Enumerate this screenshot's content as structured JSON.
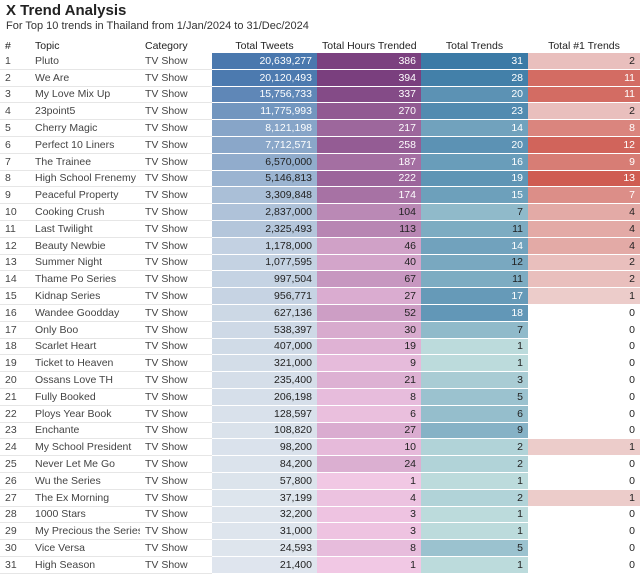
{
  "header": {
    "title": "X Trend Analysis",
    "subtitle": "For Top 10 trends in Thailand from 1/Jan/2024 to 31/Dec/2024"
  },
  "colors": {
    "tweets_low": "#e2e8ef",
    "tweets_high": "#4a78ae",
    "hours_low": "#f6cde8",
    "hours_high": "#7a3f7e",
    "trends_low": "#d3ece6",
    "trends_high": "#3b7aa6",
    "top1_zero": "#ffffff",
    "top1_low": "#f0dcdc",
    "top1_high": "#cf5c52",
    "dark_text_threshold_white": "#ffffff",
    "dark_text": "#222222"
  },
  "chart_data": {
    "type": "table",
    "columns": [
      "#",
      "Topic",
      "Category",
      "Total Tweets",
      "Total Hours Trended",
      "Total Trends",
      "Total #1 Trends"
    ],
    "rows": [
      {
        "rank": "1",
        "topic": "Pluto",
        "category": "TV Show",
        "tweets": 20639277,
        "hours": 386,
        "trends": 31,
        "top1": 2
      },
      {
        "rank": "2",
        "topic": "We Are",
        "category": "TV Show",
        "tweets": 20120493,
        "hours": 394,
        "trends": 28,
        "top1": 11
      },
      {
        "rank": "3",
        "topic": "My Love Mix Up",
        "category": "TV Show",
        "tweets": 15756733,
        "hours": 337,
        "trends": 20,
        "top1": 11
      },
      {
        "rank": "4",
        "topic": "23point5",
        "category": "TV Show",
        "tweets": 11775993,
        "hours": 270,
        "trends": 23,
        "top1": 2
      },
      {
        "rank": "5",
        "topic": "Cherry Magic",
        "category": "TV Show",
        "tweets": 8121198,
        "hours": 217,
        "trends": 14,
        "top1": 8
      },
      {
        "rank": "6",
        "topic": "Perfect 10 Liners",
        "category": "TV Show",
        "tweets": 7712571,
        "hours": 258,
        "trends": 20,
        "top1": 12
      },
      {
        "rank": "7",
        "topic": "The Trainee",
        "category": "TV Show",
        "tweets": 6570000,
        "hours": 187,
        "trends": 16,
        "top1": 9
      },
      {
        "rank": "8",
        "topic": "High School Frenemy",
        "category": "TV Show",
        "tweets": 5146813,
        "hours": 222,
        "trends": 19,
        "top1": 13
      },
      {
        "rank": "9",
        "topic": "Peaceful Property",
        "category": "TV Show",
        "tweets": 3309848,
        "hours": 174,
        "trends": 15,
        "top1": 7
      },
      {
        "rank": "10",
        "topic": "Cooking Crush",
        "category": "TV Show",
        "tweets": 2837000,
        "hours": 104,
        "trends": 7,
        "top1": 4
      },
      {
        "rank": "11",
        "topic": "Last Twilight",
        "category": "TV Show",
        "tweets": 2325493,
        "hours": 113,
        "trends": 11,
        "top1": 4
      },
      {
        "rank": "12",
        "topic": "Beauty Newbie",
        "category": "TV Show",
        "tweets": 1178000,
        "hours": 46,
        "trends": 14,
        "top1": 4
      },
      {
        "rank": "13",
        "topic": "Summer Night",
        "category": "TV Show",
        "tweets": 1077595,
        "hours": 40,
        "trends": 12,
        "top1": 2
      },
      {
        "rank": "14",
        "topic": "Thame Po Series",
        "category": "TV Show",
        "tweets": 997504,
        "hours": 67,
        "trends": 11,
        "top1": 2
      },
      {
        "rank": "15",
        "topic": "Kidnap Series",
        "category": "TV Show",
        "tweets": 956771,
        "hours": 27,
        "trends": 17,
        "top1": 1
      },
      {
        "rank": "16",
        "topic": "Wandee Goodday",
        "category": "TV Show",
        "tweets": 627136,
        "hours": 52,
        "trends": 18,
        "top1": 0
      },
      {
        "rank": "17",
        "topic": "Only Boo",
        "category": "TV Show",
        "tweets": 538397,
        "hours": 30,
        "trends": 7,
        "top1": 0
      },
      {
        "rank": "18",
        "topic": "Scarlet Heart",
        "category": "TV Show",
        "tweets": 407000,
        "hours": 19,
        "trends": 1,
        "top1": 0
      },
      {
        "rank": "19",
        "topic": "Ticket to Heaven",
        "category": "TV Show",
        "tweets": 321000,
        "hours": 9,
        "trends": 1,
        "top1": 0
      },
      {
        "rank": "20",
        "topic": "Ossans Love TH",
        "category": "TV Show",
        "tweets": 235400,
        "hours": 21,
        "trends": 3,
        "top1": 0
      },
      {
        "rank": "21",
        "topic": "Fully Booked",
        "category": "TV Show",
        "tweets": 206198,
        "hours": 8,
        "trends": 5,
        "top1": 0
      },
      {
        "rank": "22",
        "topic": "Ploys Year Book",
        "category": "TV Show",
        "tweets": 128597,
        "hours": 6,
        "trends": 6,
        "top1": 0
      },
      {
        "rank": "23",
        "topic": "Enchante",
        "category": "TV Show",
        "tweets": 108820,
        "hours": 27,
        "trends": 9,
        "top1": 0
      },
      {
        "rank": "24",
        "topic": "My School President",
        "category": "TV Show",
        "tweets": 98200,
        "hours": 10,
        "trends": 2,
        "top1": 1
      },
      {
        "rank": "25",
        "topic": "Never Let Me Go",
        "category": "TV Show",
        "tweets": 84200,
        "hours": 24,
        "trends": 2,
        "top1": 0
      },
      {
        "rank": "26",
        "topic": "Wu the Series",
        "category": "TV Show",
        "tweets": 57800,
        "hours": 1,
        "trends": 1,
        "top1": 0
      },
      {
        "rank": "27",
        "topic": "The Ex Morning",
        "category": "TV Show",
        "tweets": 37199,
        "hours": 4,
        "trends": 2,
        "top1": 1
      },
      {
        "rank": "28",
        "topic": "1000 Stars",
        "category": "TV Show",
        "tweets": 32200,
        "hours": 3,
        "trends": 1,
        "top1": 0
      },
      {
        "rank": "29",
        "topic": "My Precious the Series",
        "category": "TV Show",
        "tweets": 31000,
        "hours": 3,
        "trends": 1,
        "top1": 0
      },
      {
        "rank": "30",
        "topic": "Vice Versa",
        "category": "TV Show",
        "tweets": 24593,
        "hours": 8,
        "trends": 5,
        "top1": 0
      },
      {
        "rank": "31",
        "topic": "High Season",
        "category": "TV Show",
        "tweets": 21400,
        "hours": 1,
        "trends": 1,
        "top1": 0
      }
    ]
  }
}
